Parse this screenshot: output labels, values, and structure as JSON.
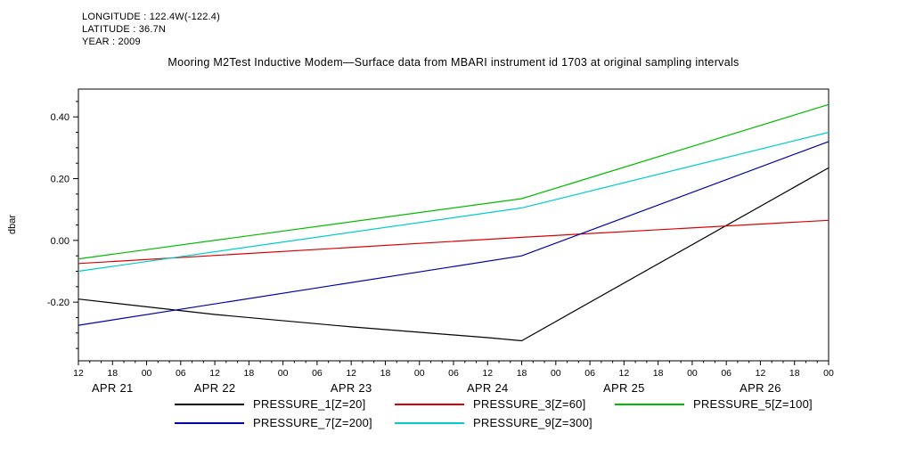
{
  "meta": {
    "longitude": "LONGITUDE : 122.4W(-122.4)",
    "latitude": "LATITUDE : 36.7N",
    "year": "YEAR : 2009"
  },
  "title": "Mooring M2Test Inductive Modem—Surface data from MBARI instrument id 1703 at original sampling intervals",
  "chart_data": {
    "type": "line",
    "title": "Mooring M2Test Inductive Modem—Surface data from MBARI instrument id 1703 at original sampling intervals",
    "xlabel": "",
    "ylabel": "dbar",
    "grid": false,
    "x_unit": "hours since 2009-04-21 12:00",
    "xlim": [
      0,
      132
    ],
    "ylim": [
      -0.39,
      0.49
    ],
    "yticks": [
      0.4,
      0.2,
      0.0,
      -0.2
    ],
    "ytick_labels": [
      "0.40",
      "0.20",
      "0.00",
      "-0.20"
    ],
    "y_minor_step": 0.05,
    "xtick_step_hours": 6,
    "xtick_labels": [
      "12",
      "18",
      "00",
      "06",
      "12",
      "18",
      "00",
      "06",
      "12",
      "18",
      "00",
      "06",
      "12",
      "18",
      "00",
      "06",
      "12",
      "18",
      "00",
      "06",
      "12",
      "18",
      "00"
    ],
    "date_labels": [
      {
        "label": "APR 21",
        "hour_center": 6
      },
      {
        "label": "APR 22",
        "hour_center": 24
      },
      {
        "label": "APR 23",
        "hour_center": 48
      },
      {
        "label": "APR 24",
        "hour_center": 72
      },
      {
        "label": "APR 25",
        "hour_center": 96
      },
      {
        "label": "APR 26",
        "hour_center": 120
      }
    ],
    "series": [
      {
        "name": "PRESSURE_1[Z=20]",
        "color": "#000000",
        "points": [
          [
            0,
            -0.19
          ],
          [
            24,
            -0.24
          ],
          [
            48,
            -0.28
          ],
          [
            72,
            -0.315
          ],
          [
            78,
            -0.325
          ],
          [
            132,
            0.235
          ]
        ]
      },
      {
        "name": "PRESSURE_3[Z=60]",
        "color": "#dd0000",
        "points": [
          [
            0,
            -0.075
          ],
          [
            78,
            0.01
          ],
          [
            132,
            0.065
          ]
        ]
      },
      {
        "name": "PRESSURE_5[Z=100]",
        "color": "#00bb00",
        "points": [
          [
            0,
            -0.06
          ],
          [
            78,
            0.135
          ],
          [
            132,
            0.44
          ]
        ]
      },
      {
        "name": "PRESSURE_7[Z=200]",
        "color": "#0000aa",
        "points": [
          [
            0,
            -0.275
          ],
          [
            78,
            -0.05
          ],
          [
            132,
            0.32
          ]
        ]
      },
      {
        "name": "PRESSURE_9[Z=300]",
        "color": "#00cccc",
        "points": [
          [
            0,
            -0.1
          ],
          [
            78,
            0.105
          ],
          [
            132,
            0.35
          ]
        ]
      }
    ],
    "legend": {
      "position": "bottom",
      "rows": [
        [
          "PRESSURE_1[Z=20]",
          "PRESSURE_3[Z=60]",
          "PRESSURE_5[Z=100]"
        ],
        [
          "PRESSURE_7[Z=200]",
          "PRESSURE_9[Z=300]"
        ]
      ]
    }
  }
}
